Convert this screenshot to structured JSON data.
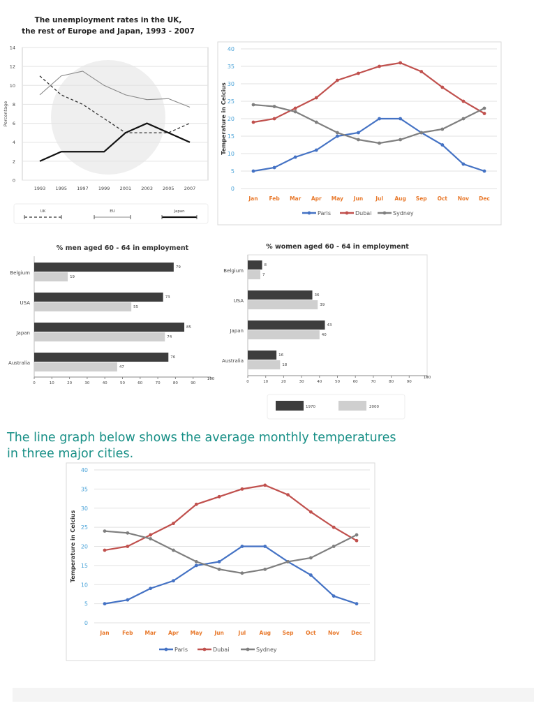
{
  "caption": {
    "line1": "The line graph below shows the average monthly temperatures",
    "line2": "in three major cities."
  },
  "colors": {
    "paris": "#4472c4",
    "dubai": "#c0504d",
    "sydney": "#7f7f7f",
    "bar_1970": "#3d3d3d",
    "bar_2000": "#cfcfcf",
    "month_ticks": "#e8782a",
    "temp_ticks": "#4aa3d8",
    "caption": "#178f86"
  },
  "chart_data": [
    {
      "type": "line",
      "title_line1": "The unemployment rates in the UK,",
      "title_line2": "the rest of Europe and Japan, 1993 - 2007",
      "ylabel": "Percentage",
      "ylim": [
        0,
        14
      ],
      "yticks": [
        "0",
        "2",
        "4",
        "6",
        "8",
        "10",
        "12",
        "14"
      ],
      "categories": [
        "1993",
        "1995",
        "1997",
        "1999",
        "2001",
        "2003",
        "2005",
        "2007"
      ],
      "grid": true,
      "legend": "bottom",
      "series": [
        {
          "name": "UK",
          "style": "dashed",
          "values": [
            11,
            9,
            8,
            6.5,
            5,
            5,
            5,
            6
          ]
        },
        {
          "name": "EU",
          "style": "thin-grey",
          "values": [
            9,
            11,
            11.5,
            10,
            9,
            8.5,
            8.6,
            7.7
          ]
        },
        {
          "name": "Japan",
          "style": "thick-black",
          "values": [
            2,
            3,
            3,
            3,
            5,
            6,
            5,
            4
          ]
        }
      ]
    },
    {
      "type": "line",
      "ylabel": "Temperature in Celcius",
      "ylim": [
        0,
        40
      ],
      "yticks": [
        "0",
        "5",
        "10",
        "15",
        "20",
        "25",
        "30",
        "35",
        "40"
      ],
      "categories": [
        "Jan",
        "Feb",
        "Mar",
        "Apr",
        "May",
        "Jun",
        "Jul",
        "Aug",
        "Sep",
        "Oct",
        "Nov",
        "Dec"
      ],
      "grid": true,
      "legend": "bottom",
      "series": [
        {
          "name": "Paris",
          "values": [
            5,
            6,
            9,
            11,
            15,
            16,
            20,
            20,
            16,
            12.5,
            7,
            5
          ]
        },
        {
          "name": "Dubai",
          "values": [
            19,
            20,
            23,
            26,
            31,
            33,
            35,
            36,
            33.5,
            29,
            25,
            21.5
          ]
        },
        {
          "name": "Sydney",
          "values": [
            24,
            23.5,
            22,
            19,
            16,
            14,
            13,
            14,
            16,
            17,
            20,
            23
          ]
        }
      ]
    },
    {
      "type": "bar",
      "orientation": "horizontal",
      "title": "% men aged 60 - 64 in employment",
      "xlim": [
        0,
        100
      ],
      "xticks": [
        "0",
        "10",
        "20",
        "30",
        "40",
        "50",
        "60",
        "70",
        "80",
        "90",
        "100"
      ],
      "categories": [
        "Belgium",
        "USA",
        "Japan",
        "Australia"
      ],
      "series": [
        {
          "name": "1970",
          "values": [
            79,
            73,
            85,
            76
          ],
          "labels": [
            "79",
            "73",
            "85",
            "76"
          ]
        },
        {
          "name": "2000",
          "values": [
            19,
            55,
            74,
            47
          ],
          "labels": [
            "19",
            "55",
            "74",
            "47"
          ]
        }
      ]
    },
    {
      "type": "bar",
      "orientation": "horizontal",
      "title": "% women aged 60 - 64 in employment",
      "xlim": [
        0,
        100
      ],
      "xticks": [
        "0",
        "10",
        "20",
        "30",
        "40",
        "50",
        "60",
        "70",
        "80",
        "90",
        "100"
      ],
      "categories": [
        "Belgium",
        "USA",
        "Japan",
        "Australia"
      ],
      "legend": "bottom",
      "series": [
        {
          "name": "1970",
          "values": [
            8,
            36,
            43,
            16
          ],
          "labels": [
            "8",
            "36",
            "43",
            "16"
          ]
        },
        {
          "name": "2000",
          "values": [
            7,
            39,
            40,
            18
          ],
          "labels": [
            "7",
            "39",
            "40",
            "18"
          ]
        }
      ]
    },
    {
      "type": "line",
      "ylabel": "Temperature in Celcius",
      "ylim": [
        0,
        40
      ],
      "yticks": [
        "0",
        "5",
        "10",
        "15",
        "20",
        "25",
        "30",
        "35",
        "40"
      ],
      "categories": [
        "Jan",
        "Feb",
        "Mar",
        "Apr",
        "May",
        "Jun",
        "Jul",
        "Aug",
        "Sep",
        "Oct",
        "Nov",
        "Dec"
      ],
      "grid": true,
      "legend": "bottom",
      "series": [
        {
          "name": "Paris",
          "values": [
            5,
            6,
            9,
            11,
            15,
            16,
            20,
            20,
            16,
            12.5,
            7,
            5
          ]
        },
        {
          "name": "Dubai",
          "values": [
            19,
            20,
            23,
            26,
            31,
            33,
            35,
            36,
            33.5,
            29,
            25,
            21.5
          ]
        },
        {
          "name": "Sydney",
          "values": [
            24,
            23.5,
            22,
            19,
            16,
            14,
            13,
            14,
            16,
            17,
            20,
            23
          ]
        }
      ]
    }
  ]
}
